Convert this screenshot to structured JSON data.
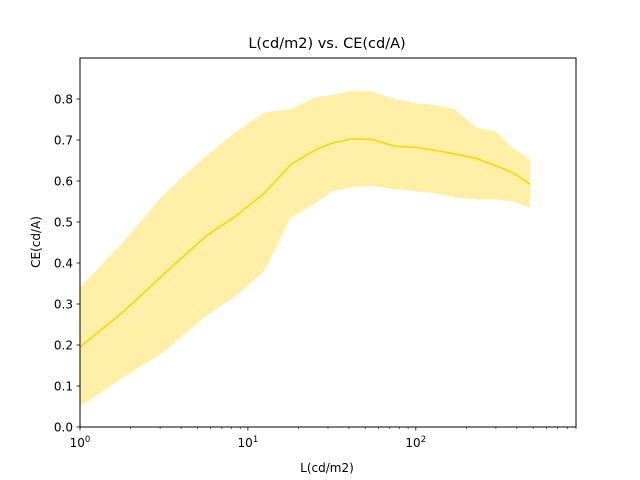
{
  "chart_data": {
    "type": "line",
    "title": "L(cd/m2) vs. CE(cd/A)",
    "xlabel": "L(cd/m2)",
    "ylabel": "CE(cd/A)",
    "xscale": "log",
    "xlim": [
      1,
      900
    ],
    "ylim": [
      0,
      0.9
    ],
    "x_major_ticks": [
      1,
      10,
      100
    ],
    "x_major_tick_labels": [
      "10",
      "10",
      "10"
    ],
    "x_major_tick_exponents": [
      "0",
      "1",
      "2"
    ],
    "y_ticks": [
      0.0,
      0.1,
      0.2,
      0.3,
      0.4,
      0.5,
      0.6,
      0.7,
      0.8
    ],
    "y_tick_labels": [
      "0.0",
      "0.1",
      "0.2",
      "0.3",
      "0.4",
      "0.5",
      "0.6",
      "0.7",
      "0.8"
    ],
    "grid": false,
    "line_color": "#FFD700",
    "band_color": "#FFE98A",
    "series": [
      {
        "x": [
          1,
          1.8,
          3.2,
          5.6,
          8.5,
          12.5,
          18,
          25,
          32,
          42,
          55,
          75,
          100,
          130,
          170,
          230,
          300,
          380,
          480
        ],
        "y": [
          0.195,
          0.28,
          0.375,
          0.465,
          0.515,
          0.57,
          0.64,
          0.675,
          0.693,
          0.703,
          0.701,
          0.685,
          0.682,
          0.675,
          0.666,
          0.655,
          0.637,
          0.62,
          0.592
        ],
        "lower": [
          0.05,
          0.12,
          0.185,
          0.27,
          0.32,
          0.38,
          0.51,
          0.545,
          0.575,
          0.585,
          0.588,
          0.58,
          0.575,
          0.57,
          0.56,
          0.555,
          0.555,
          0.55,
          0.535
        ],
        "upper": [
          0.34,
          0.45,
          0.57,
          0.66,
          0.72,
          0.767,
          0.775,
          0.803,
          0.81,
          0.82,
          0.818,
          0.8,
          0.79,
          0.785,
          0.775,
          0.73,
          0.72,
          0.68,
          0.652
        ]
      }
    ]
  }
}
